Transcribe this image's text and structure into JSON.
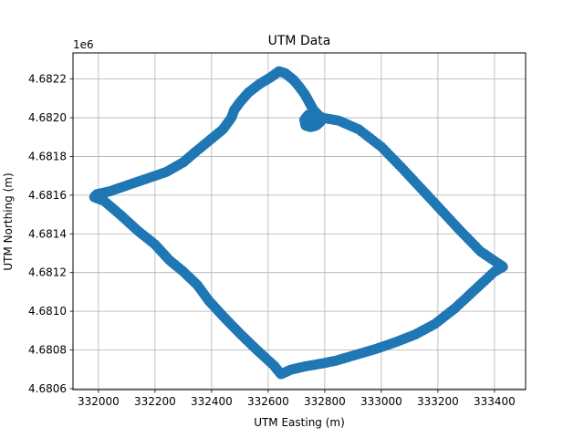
{
  "chart_data": {
    "type": "scatter",
    "title": "UTM Data",
    "xlabel": "UTM Easting (m)",
    "ylabel": "UTM Northing (m)",
    "y_offset_label": "1e6",
    "y_scale": 1000000,
    "xlim": [
      331910,
      333510
    ],
    "ylim": [
      4680595,
      4682335
    ],
    "xticks": [
      332000,
      332200,
      332400,
      332600,
      332800,
      333000,
      333200,
      333400
    ],
    "xtick_labels": [
      "332000",
      "332200",
      "332400",
      "332600",
      "332800",
      "333000",
      "333200",
      "333400"
    ],
    "yticks": [
      4680600,
      4680800,
      4681000,
      4681200,
      4681400,
      4681600,
      4681800,
      4682000,
      4682200
    ],
    "ytick_labels": [
      "4.6806",
      "4.6808",
      "4.6810",
      "4.6812",
      "4.6814",
      "4.6816",
      "4.6818",
      "4.6820",
      "4.6822"
    ],
    "grid": true,
    "marker_color": "#1f77b4",
    "series": [
      {
        "x": [
          332755,
          332768,
          332772,
          332760,
          332742,
          332728,
          332732,
          332750,
          332770,
          332785,
          332790,
          332850,
          332920,
          333000,
          333070,
          333140,
          333210,
          333280,
          333350,
          333410,
          333430,
          333400,
          333330,
          333260,
          333190,
          333120,
          333050,
          332980,
          332910,
          332840,
          332790,
          332730,
          332680,
          332645,
          332620,
          332560,
          332500,
          332440,
          332390,
          332350,
          332300,
          332250,
          332200,
          332140,
          332080,
          332020,
          331985,
          331995,
          332040,
          332100,
          332170,
          332240,
          332300,
          332340,
          332390,
          332440,
          332470,
          332480,
          332500,
          332530,
          332570,
          332610,
          332638,
          332660,
          332690,
          332710,
          332730,
          332745,
          332760,
          332780,
          332790
        ],
        "y": [
          4681965,
          4681985,
          4682010,
          4682025,
          4682015,
          4681990,
          4681960,
          4681952,
          4681960,
          4681980,
          4682000,
          4681985,
          4681940,
          4681850,
          4681745,
          4681635,
          4681525,
          4681415,
          4681310,
          4681250,
          4681230,
          4681205,
          4681110,
          4681015,
          4680935,
          4680880,
          4680840,
          4680805,
          4680775,
          4680745,
          4680730,
          4680715,
          4680698,
          4680675,
          4680720,
          4680800,
          4680885,
          4680975,
          4681055,
          4681135,
          4681205,
          4681265,
          4681345,
          4681415,
          4681495,
          4681570,
          4681590,
          4681605,
          4681620,
          4681650,
          4681685,
          4681720,
          4681770,
          4681820,
          4681880,
          4681940,
          4682000,
          4682040,
          4682080,
          4682130,
          4682175,
          4682210,
          4682240,
          4682230,
          4682195,
          4682160,
          4682120,
          4682080,
          4682040,
          4682010,
          4682000
        ]
      }
    ]
  }
}
